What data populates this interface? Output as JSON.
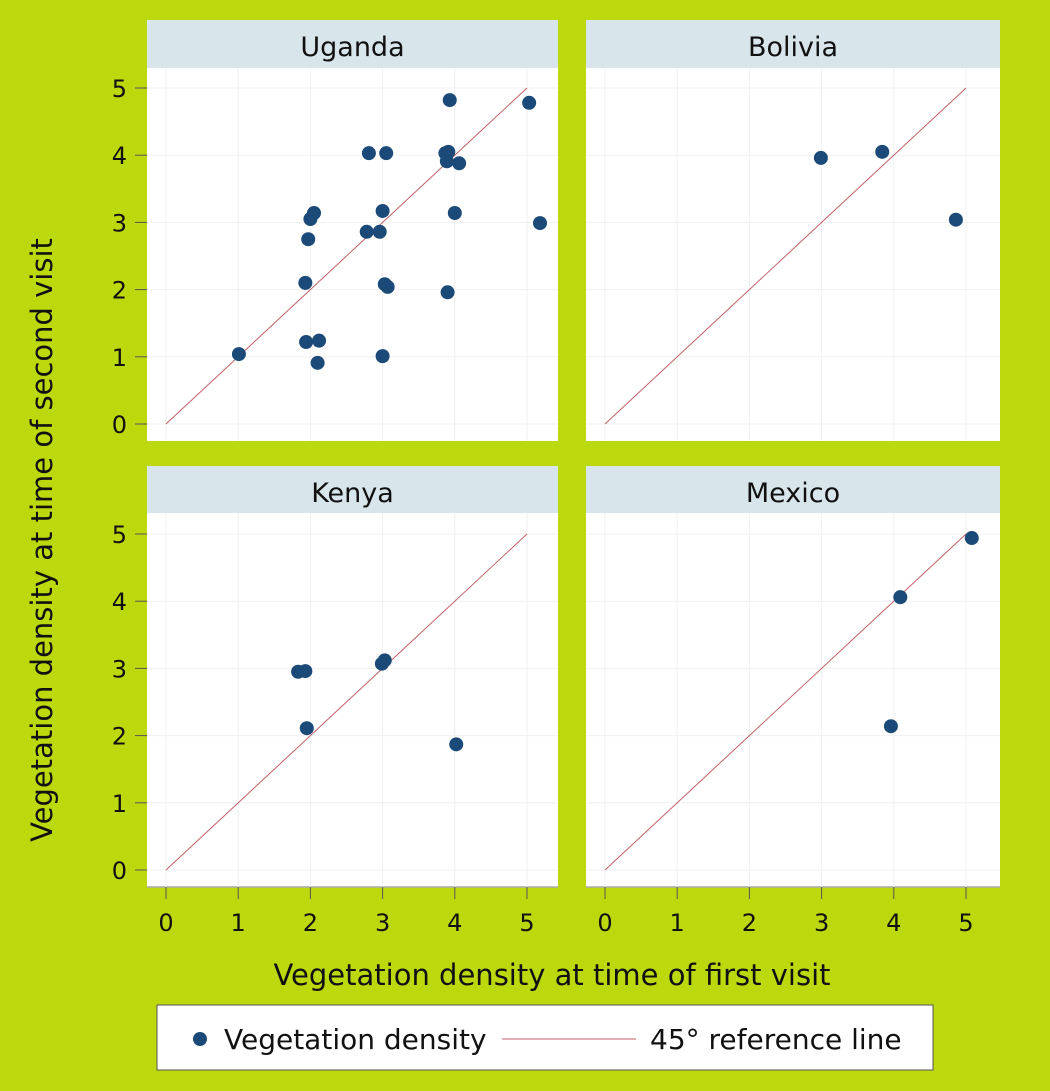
{
  "chart_data": {
    "type": "scatter",
    "xlabel": "Vegetation density at time of first visit",
    "ylabel": "Vegetation density at time of second visit",
    "xlim": [
      0,
      5
    ],
    "ylim": [
      0,
      5
    ],
    "xticks": [
      "0",
      "1",
      "2",
      "3",
      "4",
      "5"
    ],
    "yticks": [
      "0",
      "1",
      "2",
      "3",
      "4",
      "5"
    ],
    "grid": true,
    "legend": {
      "placement": "bottom",
      "entries": [
        "Vegetation density",
        "45° reference line"
      ]
    },
    "colors": {
      "point": "#1b4a78",
      "refline": "#c2606a",
      "header": "#d8e6ec",
      "background": "#bcd90e"
    },
    "panels": [
      {
        "title": "Uganda",
        "points": [
          [
            1.01,
            1.04
          ],
          [
            3.93,
            4.82
          ],
          [
            5.03,
            4.78
          ],
          [
            2.81,
            4.03
          ],
          [
            3.05,
            4.03
          ],
          [
            3.87,
            4.03
          ],
          [
            3.91,
            4.05
          ],
          [
            3.89,
            3.91
          ],
          [
            4.06,
            3.88
          ],
          [
            2.05,
            3.14
          ],
          [
            2.0,
            3.05
          ],
          [
            3.0,
            3.17
          ],
          [
            4.0,
            3.14
          ],
          [
            5.18,
            2.99
          ],
          [
            1.97,
            2.75
          ],
          [
            2.78,
            2.86
          ],
          [
            2.96,
            2.86
          ],
          [
            1.93,
            2.1
          ],
          [
            3.03,
            2.08
          ],
          [
            3.07,
            2.04
          ],
          [
            3.9,
            1.96
          ],
          [
            1.94,
            1.22
          ],
          [
            2.12,
            1.24
          ],
          [
            2.1,
            0.91
          ],
          [
            3.0,
            1.01
          ]
        ]
      },
      {
        "title": "Bolivia",
        "points": [
          [
            2.99,
            3.96
          ],
          [
            3.84,
            4.05
          ],
          [
            4.86,
            3.04
          ]
        ]
      },
      {
        "title": "Kenya",
        "points": [
          [
            1.83,
            2.95
          ],
          [
            1.93,
            2.96
          ],
          [
            2.99,
            3.07
          ],
          [
            3.03,
            3.12
          ],
          [
            1.95,
            2.11
          ],
          [
            4.02,
            1.87
          ]
        ]
      },
      {
        "title": "Mexico",
        "points": [
          [
            5.08,
            4.94
          ],
          [
            4.09,
            4.06
          ],
          [
            3.96,
            2.14
          ]
        ]
      }
    ]
  }
}
